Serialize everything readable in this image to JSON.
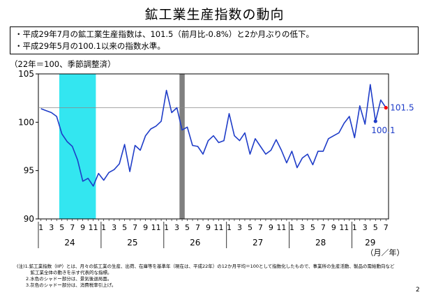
{
  "title": "鉱工業生産指数の動向",
  "summary": [
    "・平成29年7月の鉱工業生産指数は、101.5（前月比-0.8%）と2か月ぶりの低下。",
    "・平成29年5月の100.1以来の指数水準。"
  ],
  "unit_label": "（22年＝100、季節調整済）",
  "x_axis_unit": "（月／年）",
  "notes": [
    "(注)1.鉱工業指数（IIP）とは、月々の鉱工業の生産、出荷、在庫等を基準年（現在は、平成22年）の12か月平均＝100として指数化したもので、事業所の生産活動、製品の需給動向など",
    "　　　鉱工業全体の動きを示す代表的な指標。",
    "　　2.水色のシャドー部分は、景気後退局面。",
    "　　3.灰色のシャドー部分は、消費税率引上げ。"
  ],
  "page_number": "2",
  "colors": {
    "line": "#1e3cc8",
    "recession_shade": "#33e6f0",
    "tax_shade": "#808080",
    "highlight_point": "#ff0000",
    "reference_line": "#888888"
  },
  "chart_data": {
    "type": "line",
    "ylim": [
      90,
      105
    ],
    "y_ticks": [
      90,
      95,
      100,
      105
    ],
    "month_tick_labels": [
      "1",
      "3",
      "5",
      "7",
      "9",
      "11"
    ],
    "year_groups": [
      {
        "label": "24",
        "months": 12
      },
      {
        "label": "25",
        "months": 12
      },
      {
        "label": "26",
        "months": 12
      },
      {
        "label": "27",
        "months": 12
      },
      {
        "label": "28",
        "months": 12
      },
      {
        "label": "29",
        "months": 7
      }
    ],
    "series": [
      {
        "values": [
          101.4,
          101.2,
          101.0,
          100.6,
          98.8,
          98.0,
          97.5,
          96.1,
          93.9,
          94.2,
          93.4,
          94.7,
          94.0,
          94.8,
          95.1,
          95.7,
          97.7,
          94.9,
          97.6,
          97.1,
          98.6,
          99.3,
          99.6,
          100.1,
          103.3,
          101.0,
          101.5,
          99.2,
          99.5,
          97.6,
          97.5,
          96.7,
          98.1,
          98.6,
          97.9,
          98.1,
          100.9,
          98.6,
          98.1,
          98.9,
          96.7,
          98.3,
          97.5,
          96.7,
          97.1,
          98.2,
          97.1,
          95.8,
          97.0,
          95.3,
          96.3,
          96.7,
          95.6,
          97.0,
          97.0,
          98.3,
          98.6,
          98.9,
          99.9,
          100.6,
          98.4,
          101.7,
          99.8,
          103.9,
          100.1,
          102.3,
          101.5
        ]
      }
    ],
    "annotations": [
      {
        "text": "101.5",
        "month_index": 66,
        "value": 101.5
      },
      {
        "text": "100.1",
        "month_index": 64,
        "value": 100.1
      }
    ],
    "reference_level": 101.5,
    "shaded_periods": [
      {
        "kind": "recession",
        "start_month_index": 4,
        "end_month_index": 10
      },
      {
        "kind": "tax",
        "start_month_index": 27,
        "end_month_index": 27
      }
    ]
  }
}
